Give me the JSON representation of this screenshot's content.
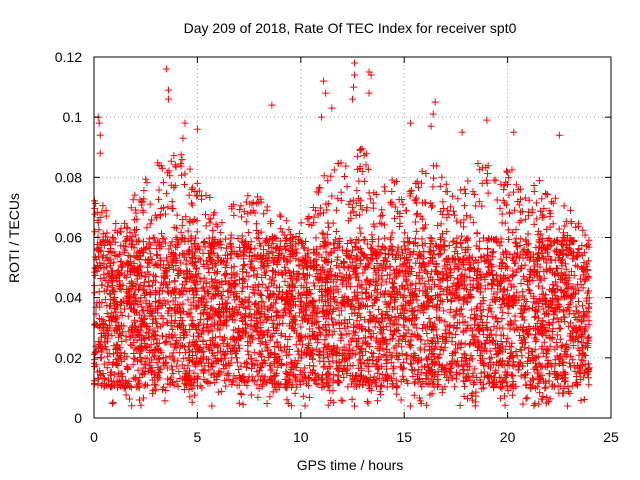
{
  "chart_data": {
    "type": "scatter",
    "title": "Day 209 of 2018, Rate Of TEC Index for receiver spt0",
    "xlabel": "GPS time / hours",
    "ylabel": "ROTI / TECUs",
    "xlim": [
      0,
      25
    ],
    "ylim": [
      0,
      0.12
    ],
    "xticks": [
      0,
      5,
      10,
      15,
      20,
      25
    ],
    "xtick_labels": [
      "0",
      "5",
      "10",
      "15",
      "20",
      "25"
    ],
    "yticks": [
      0,
      0.02,
      0.04,
      0.06,
      0.08,
      0.1,
      0.12
    ],
    "ytick_labels": [
      "0",
      "0.02",
      "0.04",
      "0.06",
      "0.08",
      "0.1",
      "0.12"
    ],
    "grid": true,
    "marker": "+",
    "marker_color": "#ff0000",
    "series": [
      {
        "name": "ROTI",
        "x_range": [
          0,
          23.95
        ],
        "typical_band": [
          0.01,
          0.06
        ],
        "envelope": [
          [
            0.0,
            0.075
          ],
          [
            0.5,
            0.07
          ],
          [
            1.0,
            0.065
          ],
          [
            1.5,
            0.07
          ],
          [
            2.0,
            0.075
          ],
          [
            2.5,
            0.08
          ],
          [
            3.0,
            0.085
          ],
          [
            3.5,
            0.09
          ],
          [
            4.0,
            0.09
          ],
          [
            4.5,
            0.085
          ],
          [
            5.0,
            0.08
          ],
          [
            5.5,
            0.075
          ],
          [
            6.0,
            0.07
          ],
          [
            6.5,
            0.07
          ],
          [
            7.0,
            0.072
          ],
          [
            7.5,
            0.075
          ],
          [
            8.0,
            0.075
          ],
          [
            8.5,
            0.07
          ],
          [
            9.0,
            0.068
          ],
          [
            9.5,
            0.065
          ],
          [
            10.0,
            0.065
          ],
          [
            10.5,
            0.07
          ],
          [
            11.0,
            0.08
          ],
          [
            11.5,
            0.085
          ],
          [
            12.0,
            0.085
          ],
          [
            12.5,
            0.09
          ],
          [
            13.0,
            0.09
          ],
          [
            13.5,
            0.085
          ],
          [
            14.0,
            0.08
          ],
          [
            14.5,
            0.08
          ],
          [
            15.0,
            0.075
          ],
          [
            15.5,
            0.08
          ],
          [
            16.0,
            0.085
          ],
          [
            16.5,
            0.085
          ],
          [
            17.0,
            0.08
          ],
          [
            17.5,
            0.075
          ],
          [
            18.0,
            0.08
          ],
          [
            18.5,
            0.085
          ],
          [
            19.0,
            0.085
          ],
          [
            19.5,
            0.08
          ],
          [
            20.0,
            0.085
          ],
          [
            20.5,
            0.08
          ],
          [
            21.0,
            0.075
          ],
          [
            21.5,
            0.08
          ],
          [
            22.0,
            0.075
          ],
          [
            22.5,
            0.075
          ],
          [
            23.0,
            0.07
          ],
          [
            23.5,
            0.065
          ],
          [
            23.95,
            0.06
          ]
        ],
        "notable_points": [
          {
            "x": 0.2,
            "y": 0.1
          },
          {
            "x": 0.25,
            "y": 0.098
          },
          {
            "x": 0.3,
            "y": 0.094
          },
          {
            "x": 0.3,
            "y": 0.088
          },
          {
            "x": 3.5,
            "y": 0.116
          },
          {
            "x": 3.6,
            "y": 0.109
          },
          {
            "x": 3.6,
            "y": 0.106
          },
          {
            "x": 4.4,
            "y": 0.098
          },
          {
            "x": 4.3,
            "y": 0.093
          },
          {
            "x": 8.6,
            "y": 0.104
          },
          {
            "x": 11.1,
            "y": 0.112
          },
          {
            "x": 11.2,
            "y": 0.108
          },
          {
            "x": 11.0,
            "y": 0.1
          },
          {
            "x": 11.5,
            "y": 0.103
          },
          {
            "x": 12.6,
            "y": 0.118
          },
          {
            "x": 12.6,
            "y": 0.114
          },
          {
            "x": 12.55,
            "y": 0.11
          },
          {
            "x": 12.5,
            "y": 0.106
          },
          {
            "x": 13.3,
            "y": 0.115
          },
          {
            "x": 13.4,
            "y": 0.114
          },
          {
            "x": 13.3,
            "y": 0.108
          },
          {
            "x": 15.3,
            "y": 0.098
          },
          {
            "x": 16.5,
            "y": 0.105
          },
          {
            "x": 16.4,
            "y": 0.101
          },
          {
            "x": 16.3,
            "y": 0.097
          },
          {
            "x": 19.0,
            "y": 0.099
          },
          {
            "x": 20.3,
            "y": 0.095
          },
          {
            "x": 22.5,
            "y": 0.094
          },
          {
            "x": 17.8,
            "y": 0.095
          },
          {
            "x": 5.0,
            "y": 0.096
          },
          {
            "x": 12.6,
            "y": 0.004
          },
          {
            "x": 5.7,
            "y": 0.004
          },
          {
            "x": 22.9,
            "y": 0.004
          },
          {
            "x": 15.3,
            "y": 0.004
          },
          {
            "x": 2.2,
            "y": 0.006
          }
        ]
      }
    ]
  }
}
